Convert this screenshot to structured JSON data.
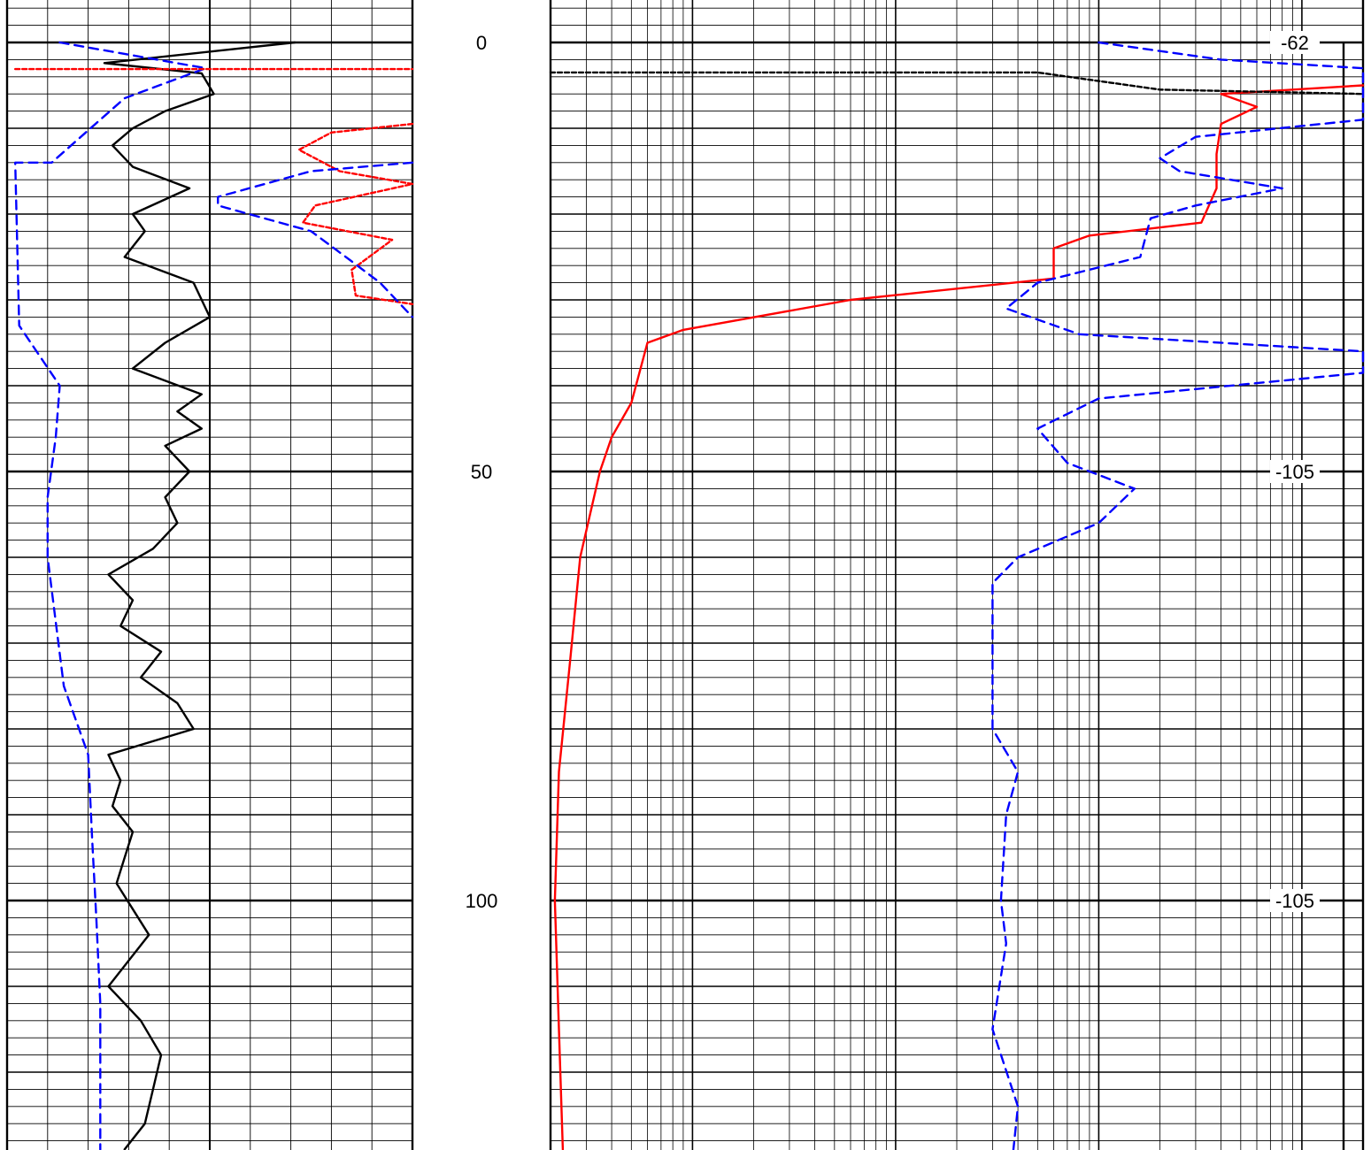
{
  "chart_data": {
    "type": "line",
    "title": "",
    "xlabel": "",
    "ylabel": "",
    "depth_axis": {
      "ylim": [
        -5,
        130
      ],
      "ticks": [
        {
          "value": 0,
          "label": "0"
        },
        {
          "value": 50,
          "label": "50"
        },
        {
          "value": 100,
          "label": "100"
        }
      ]
    },
    "right_track_markers": [
      {
        "depth": 0,
        "label": "-62"
      },
      {
        "depth": 50,
        "label": "-105"
      },
      {
        "depth": 100,
        "label": "-105"
      }
    ],
    "grid": true,
    "tracks": [
      {
        "name": "track-1",
        "scale": "linear",
        "xlim": [
          0,
          10
        ],
        "series": [
          {
            "id": "track1-black-solid",
            "color": "#000000",
            "dash": "solid",
            "points": [
              [
                7.1,
                0
              ],
              [
                2.4,
                2.4
              ],
              [
                4.8,
                3.6
              ],
              [
                5.1,
                6
              ],
              [
                3.9,
                8
              ],
              [
                3.1,
                10
              ],
              [
                2.6,
                12
              ],
              [
                3.1,
                14.5
              ],
              [
                4.5,
                17
              ],
              [
                3.1,
                20
              ],
              [
                3.4,
                22
              ],
              [
                2.9,
                25
              ],
              [
                4.6,
                28
              ],
              [
                5.0,
                32
              ],
              [
                3.9,
                35
              ],
              [
                3.1,
                38
              ],
              [
                4.8,
                41
              ],
              [
                4.2,
                43
              ],
              [
                4.8,
                45
              ],
              [
                3.9,
                47
              ],
              [
                4.5,
                50
              ],
              [
                3.9,
                53
              ],
              [
                4.2,
                56
              ],
              [
                3.6,
                59
              ],
              [
                2.5,
                62
              ],
              [
                3.1,
                65
              ],
              [
                2.8,
                68
              ],
              [
                3.8,
                71
              ],
              [
                3.3,
                74
              ],
              [
                4.2,
                77
              ],
              [
                4.6,
                80
              ],
              [
                2.5,
                83
              ],
              [
                2.8,
                86
              ],
              [
                2.6,
                89
              ],
              [
                3.1,
                92
              ],
              [
                2.9,
                95
              ],
              [
                2.7,
                98
              ],
              [
                3.1,
                101
              ],
              [
                3.5,
                104
              ],
              [
                2.5,
                110
              ],
              [
                3.3,
                114
              ],
              [
                3.8,
                118
              ],
              [
                3.6,
                122
              ],
              [
                3.4,
                126
              ],
              [
                2.9,
                129
              ]
            ]
          },
          {
            "id": "track1-blue-dashed",
            "color": "#0000ff",
            "dash": "dashed",
            "points": [
              [
                1.3,
                0
              ],
              [
                4.9,
                3
              ],
              [
                2.9,
                6.5
              ],
              [
                1.1,
                14
              ],
              [
                0.2,
                14
              ],
              [
                0.3,
                33
              ],
              [
                1.3,
                40
              ],
              [
                1.2,
                46
              ],
              [
                1.0,
                53
              ],
              [
                1.0,
                60
              ],
              [
                1.4,
                75
              ],
              [
                2.0,
                83
              ],
              [
                2.1,
                93
              ],
              [
                2.2,
                102
              ],
              [
                2.3,
                112
              ],
              [
                2.3,
                129
              ]
            ]
          },
          {
            "id": "track1-red-dashed-flat",
            "color": "#ff0000",
            "dash": "dashed",
            "points": [
              [
                0.2,
                3.1
              ],
              [
                10.0,
                3.1
              ]
            ]
          },
          {
            "id": "track1-red-dashed-curve",
            "color": "#ff0000",
            "dash": "dashed",
            "points": [
              [
                10.0,
                9.5
              ],
              [
                8.0,
                10.5
              ],
              [
                7.2,
                12.5
              ],
              [
                8.2,
                15
              ],
              [
                10.0,
                16.5
              ],
              [
                7.6,
                19
              ],
              [
                7.3,
                21
              ],
              [
                9.5,
                23
              ],
              [
                8.5,
                26.5
              ],
              [
                8.6,
                29.5
              ],
              [
                10.0,
                30.5
              ]
            ]
          },
          {
            "id": "track1-blue-dashed-curve",
            "color": "#0000ff",
            "dash": "dashed",
            "points": [
              [
                10.0,
                14
              ],
              [
                7.5,
                15
              ],
              [
                5.2,
                18
              ],
              [
                5.2,
                19
              ],
              [
                7.5,
                22
              ],
              [
                8.5,
                25.5
              ],
              [
                9.2,
                28
              ],
              [
                10.0,
                32
              ]
            ]
          }
        ]
      },
      {
        "name": "track-2",
        "scale": "log",
        "xlim": [
          0.2,
          2000
        ],
        "series": [
          {
            "id": "track2-red-solid",
            "color": "#ff0000",
            "dash": "solid",
            "points": [
              [
                2000,
                5
              ],
              [
                400,
                6
              ],
              [
                600,
                7.5
              ],
              [
                400,
                9.5
              ],
              [
                380,
                13
              ],
              [
                380,
                17
              ],
              [
                320,
                21
              ],
              [
                90,
                22.5
              ],
              [
                60,
                24
              ],
              [
                60,
                27.5
              ],
              [
                6,
                30
              ],
              [
                0.9,
                33.5
              ],
              [
                0.6,
                35
              ],
              [
                0.5,
                42
              ],
              [
                0.4,
                46
              ],
              [
                0.35,
                50
              ],
              [
                0.28,
                60
              ],
              [
                0.25,
                72
              ],
              [
                0.22,
                85
              ],
              [
                0.21,
                100
              ],
              [
                0.22,
                115
              ],
              [
                0.23,
                129
              ]
            ]
          },
          {
            "id": "track2-blue-dashed",
            "color": "#0000ff",
            "dash": "dashed",
            "points": [
              [
                100,
                0
              ],
              [
                400,
                2
              ],
              [
                2000,
                3
              ],
              [
                2000,
                9
              ],
              [
                300,
                11
              ],
              [
                200,
                13.5
              ],
              [
                250,
                15
              ],
              [
                800,
                17
              ],
              [
                300,
                19
              ],
              [
                180,
                20.5
              ],
              [
                160,
                25
              ],
              [
                50,
                28
              ],
              [
                35,
                31
              ],
              [
                80,
                34
              ],
              [
                2000,
                36
              ],
              [
                2000,
                38.5
              ],
              [
                100,
                41.5
              ],
              [
                50,
                45
              ],
              [
                70,
                49
              ],
              [
                150,
                52
              ],
              [
                100,
                56
              ],
              [
                40,
                60
              ],
              [
                30,
                63
              ],
              [
                30,
                80
              ],
              [
                40,
                85
              ],
              [
                35,
                90
              ],
              [
                33,
                100
              ],
              [
                35,
                105
              ],
              [
                30,
                115
              ],
              [
                40,
                124
              ],
              [
                38,
                129
              ]
            ]
          },
          {
            "id": "track2-black-dashed",
            "color": "#000000",
            "dash": "dashed",
            "points": [
              [
                0.2,
                3.5
              ],
              [
                50,
                3.5
              ],
              [
                200,
                5.5
              ],
              [
                2000,
                6
              ]
            ]
          }
        ]
      }
    ]
  }
}
